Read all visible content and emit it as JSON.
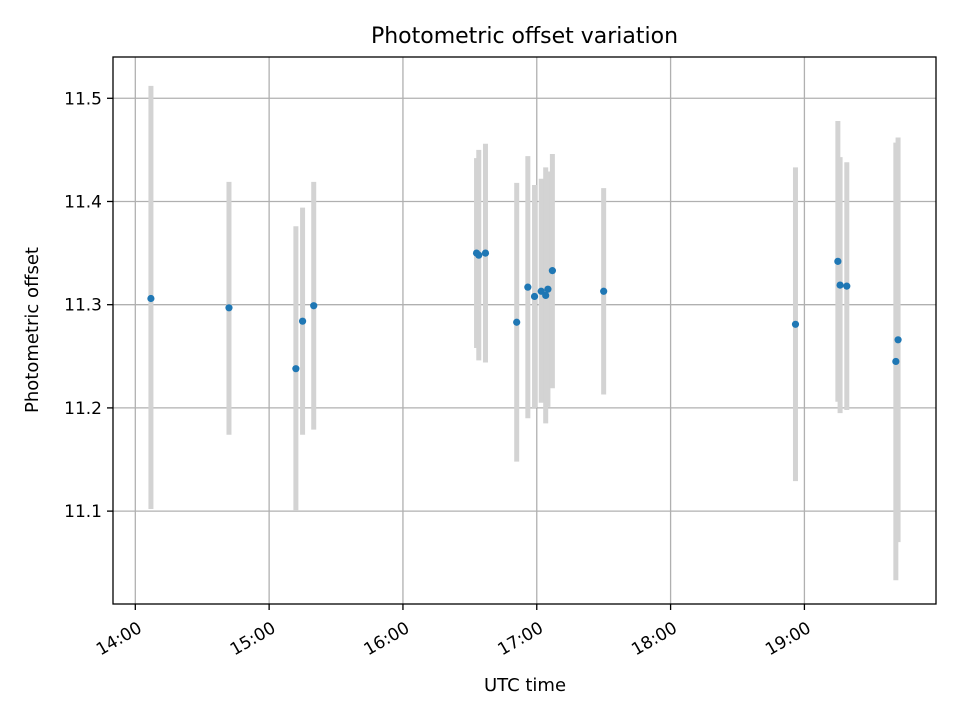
{
  "chart_data": {
    "type": "scatter",
    "title": "Photometric offset variation",
    "xlabel": "UTC time",
    "ylabel": "Photometric offset",
    "x_axis_type": "time",
    "xlim": [
      "13:50",
      "19:59"
    ],
    "ylim": [
      11.01,
      11.54
    ],
    "x_ticks": [
      "14:00",
      "15:00",
      "16:00",
      "17:00",
      "18:00",
      "19:00"
    ],
    "y_ticks": [
      11.1,
      11.2,
      11.3,
      11.4,
      11.5
    ],
    "grid": true,
    "errorbar_color": "#d3d3d3",
    "marker_color": "#1f77b4",
    "points": [
      {
        "time": "14:07",
        "y": 11.306,
        "err_low": 11.102,
        "err_high": 11.512
      },
      {
        "time": "14:42",
        "y": 11.297,
        "err_low": 11.174,
        "err_high": 11.419
      },
      {
        "time": "15:12",
        "y": 11.238,
        "err_low": 11.101,
        "err_high": 11.376
      },
      {
        "time": "15:15",
        "y": 11.284,
        "err_low": 11.174,
        "err_high": 11.394
      },
      {
        "time": "15:20",
        "y": 11.299,
        "err_low": 11.179,
        "err_high": 11.419
      },
      {
        "time": "16:33",
        "y": 11.35,
        "err_low": 11.258,
        "err_high": 11.442
      },
      {
        "time": "16:34",
        "y": 11.348,
        "err_low": 11.246,
        "err_high": 11.45
      },
      {
        "time": "16:37",
        "y": 11.35,
        "err_low": 11.244,
        "err_high": 11.456
      },
      {
        "time": "16:51",
        "y": 11.283,
        "err_low": 11.148,
        "err_high": 11.418
      },
      {
        "time": "16:56",
        "y": 11.317,
        "err_low": 11.19,
        "err_high": 11.444
      },
      {
        "time": "16:59",
        "y": 11.308,
        "err_low": 11.2,
        "err_high": 11.416
      },
      {
        "time": "17:02",
        "y": 11.313,
        "err_low": 11.205,
        "err_high": 11.422
      },
      {
        "time": "17:04",
        "y": 11.309,
        "err_low": 11.185,
        "err_high": 11.433
      },
      {
        "time": "17:05",
        "y": 11.315,
        "err_low": 11.201,
        "err_high": 11.429
      },
      {
        "time": "17:07",
        "y": 11.333,
        "err_low": 11.219,
        "err_high": 11.446
      },
      {
        "time": "17:30",
        "y": 11.313,
        "err_low": 11.213,
        "err_high": 11.413
      },
      {
        "time": "18:56",
        "y": 11.281,
        "err_low": 11.129,
        "err_high": 11.433
      },
      {
        "time": "19:15",
        "y": 11.342,
        "err_low": 11.206,
        "err_high": 11.478
      },
      {
        "time": "19:16",
        "y": 11.319,
        "err_low": 11.195,
        "err_high": 11.443
      },
      {
        "time": "19:19",
        "y": 11.318,
        "err_low": 11.198,
        "err_high": 11.438
      },
      {
        "time": "19:41",
        "y": 11.245,
        "err_low": 11.033,
        "err_high": 11.457
      },
      {
        "time": "19:42",
        "y": 11.266,
        "err_low": 11.07,
        "err_high": 11.462
      }
    ]
  }
}
